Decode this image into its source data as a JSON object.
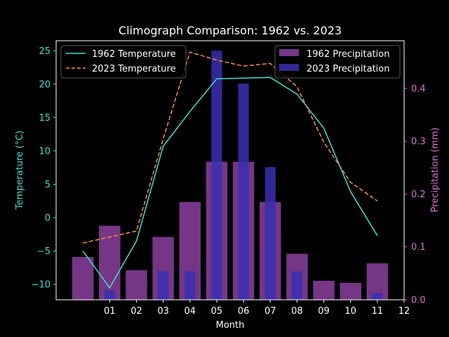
{
  "chart_data": {
    "type": "bar+line",
    "title": "Climograph Comparison: 1962 vs. 2023",
    "xlabel": "Month",
    "ylabel_left": "Temperature (°C)",
    "ylabel_right": "Precipitation (mm)",
    "x_ticks": [
      "01",
      "02",
      "03",
      "04",
      "05",
      "06",
      "07",
      "08",
      "09",
      "10",
      "11",
      "12"
    ],
    "xlim": [
      -1,
      12
    ],
    "ylim_left": [
      -12.3,
      26.5
    ],
    "ylim_right": [
      0,
      0.49
    ],
    "left_ticks": [
      -10,
      -5,
      0,
      5,
      10,
      15,
      20,
      25
    ],
    "right_ticks": [
      0.0,
      0.1,
      0.2,
      0.3,
      0.4
    ],
    "left_tick_labels": [
      "−10",
      "−5",
      "0",
      "5",
      "10",
      "15",
      "20",
      "25"
    ],
    "right_tick_labels": [
      "0.0",
      "0.1",
      "0.2",
      "0.3",
      "0.4"
    ],
    "x": [
      0,
      1,
      2,
      3,
      4,
      5,
      6,
      7,
      8,
      9,
      10,
      11
    ],
    "temperature_series": [
      {
        "name": "1962 Temperature",
        "color": "#40e0d0",
        "style": "solid",
        "values": [
          -5.0,
          -10.5,
          -3.5,
          10.7,
          15.9,
          20.8,
          20.9,
          21.0,
          18.5,
          13.4,
          3.9,
          -2.7
        ]
      },
      {
        "name": "2023 Temperature",
        "color": "#ff8c42",
        "style": "dashed",
        "values": [
          -3.8,
          -2.9,
          -2.0,
          11.8,
          24.8,
          23.6,
          22.7,
          23.1,
          19.6,
          11.3,
          5.3,
          2.5
        ]
      }
    ],
    "precipitation_series": [
      {
        "name": "1962 Precipitation",
        "color": "#8a3f9e",
        "width": 0.8,
        "values": [
          0.081,
          0.14,
          0.056,
          0.119,
          0.185,
          0.261,
          0.261,
          0.185,
          0.087,
          0.036,
          0.032,
          0.069
        ]
      },
      {
        "name": "2023 Precipitation",
        "color": "#3a2fb0",
        "width": 0.4,
        "values": [
          0.0,
          0.018,
          0.0,
          0.054,
          0.054,
          0.471,
          0.409,
          0.251,
          0.054,
          0.0,
          0.0,
          0.013
        ]
      }
    ],
    "legend_left": "upper left",
    "legend_right": "upper right",
    "grid": false,
    "colors": {
      "background": "#000000",
      "axis": "#ffffff",
      "left_axis": "#40e0d0",
      "right_axis": "#da70d6"
    }
  }
}
